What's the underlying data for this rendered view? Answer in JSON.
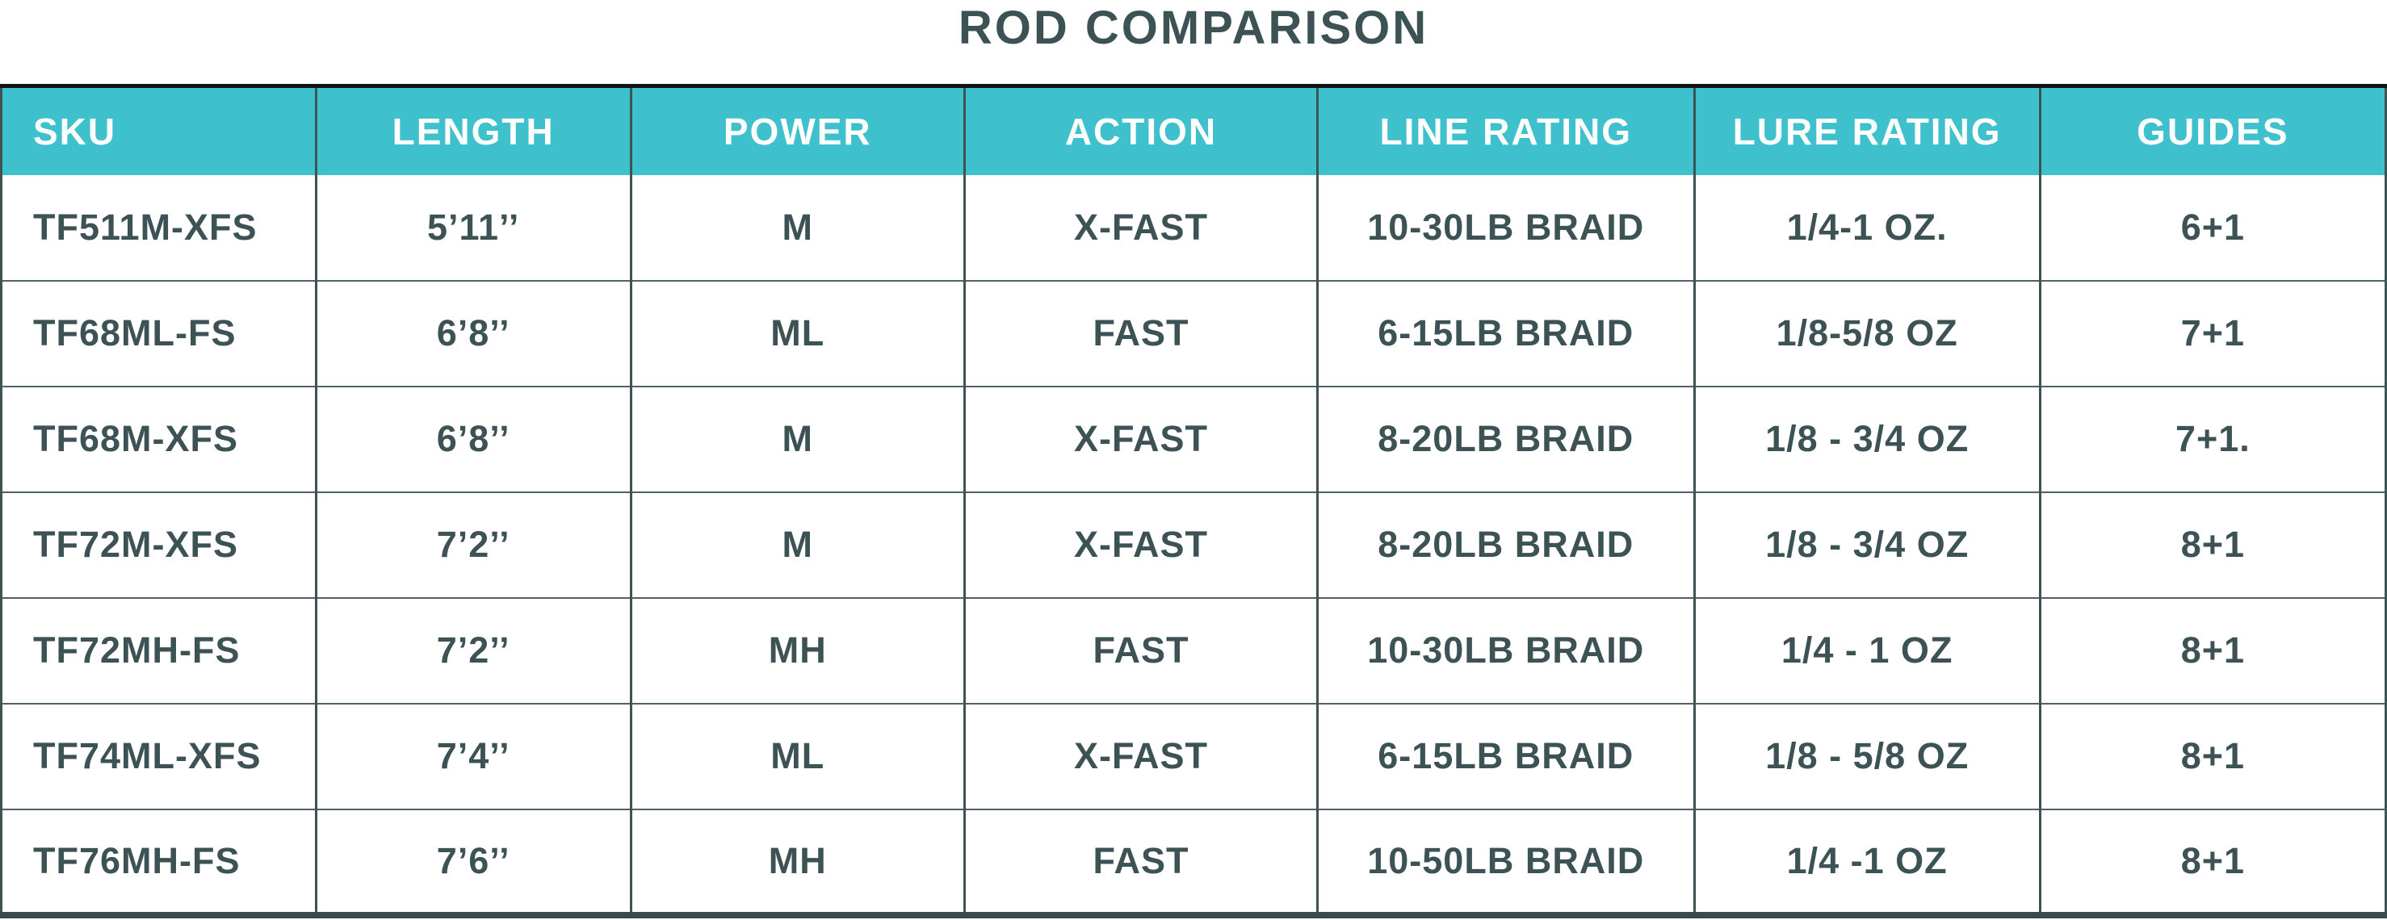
{
  "title": "ROD COMPARISON",
  "colors": {
    "header_background": "#3FC0CD",
    "header_text": "#FFFFFF",
    "body_text": "#3C5254",
    "divider": "#3E5354",
    "top_border": "#121414",
    "bottom_border": "#394B4C"
  },
  "chart_data": {
    "type": "table",
    "title": "ROD COMPARISON",
    "columns": [
      "SKU",
      "LENGTH",
      "POWER",
      "ACTION",
      "LINE RATING",
      "LURE RATING",
      "GUIDES"
    ],
    "rows": [
      [
        "TF511M-XFS",
        "5’11’’",
        "M",
        "X-FAST",
        "10-30LB BRAID",
        "1/4-1 OZ.",
        "6+1"
      ],
      [
        "TF68ML-FS",
        "6’8’’",
        "ML",
        "FAST",
        "6-15LB BRAID",
        "1/8-5/8 OZ",
        "7+1"
      ],
      [
        "TF68M-XFS",
        "6’8’’",
        "M",
        "X-FAST",
        "8-20LB BRAID",
        "1/8 - 3/4 OZ",
        "7+1."
      ],
      [
        "TF72M-XFS",
        "7’2’’",
        "M",
        "X-FAST",
        "8-20LB BRAID",
        "1/8 - 3/4 OZ",
        "8+1"
      ],
      [
        "TF72MH-FS",
        "7’2’’",
        "MH",
        "FAST",
        "10-30LB BRAID",
        "1/4 - 1 OZ",
        "8+1"
      ],
      [
        "TF74ML-XFS",
        "7’4’’",
        "ML",
        "X-FAST",
        "6-15LB BRAID",
        "1/8 - 5/8 OZ",
        "8+1"
      ],
      [
        "TF76MH-FS",
        "7’6’’",
        "MH",
        "FAST",
        "10-50LB BRAID",
        "1/4 -1 OZ",
        "8+1"
      ]
    ],
    "layout": {
      "column_width_percent": [
        13.2,
        13.2,
        14.0,
        14.8,
        15.8,
        14.5,
        14.5
      ],
      "sku_column_align": "left",
      "other_columns_align": "center"
    }
  }
}
